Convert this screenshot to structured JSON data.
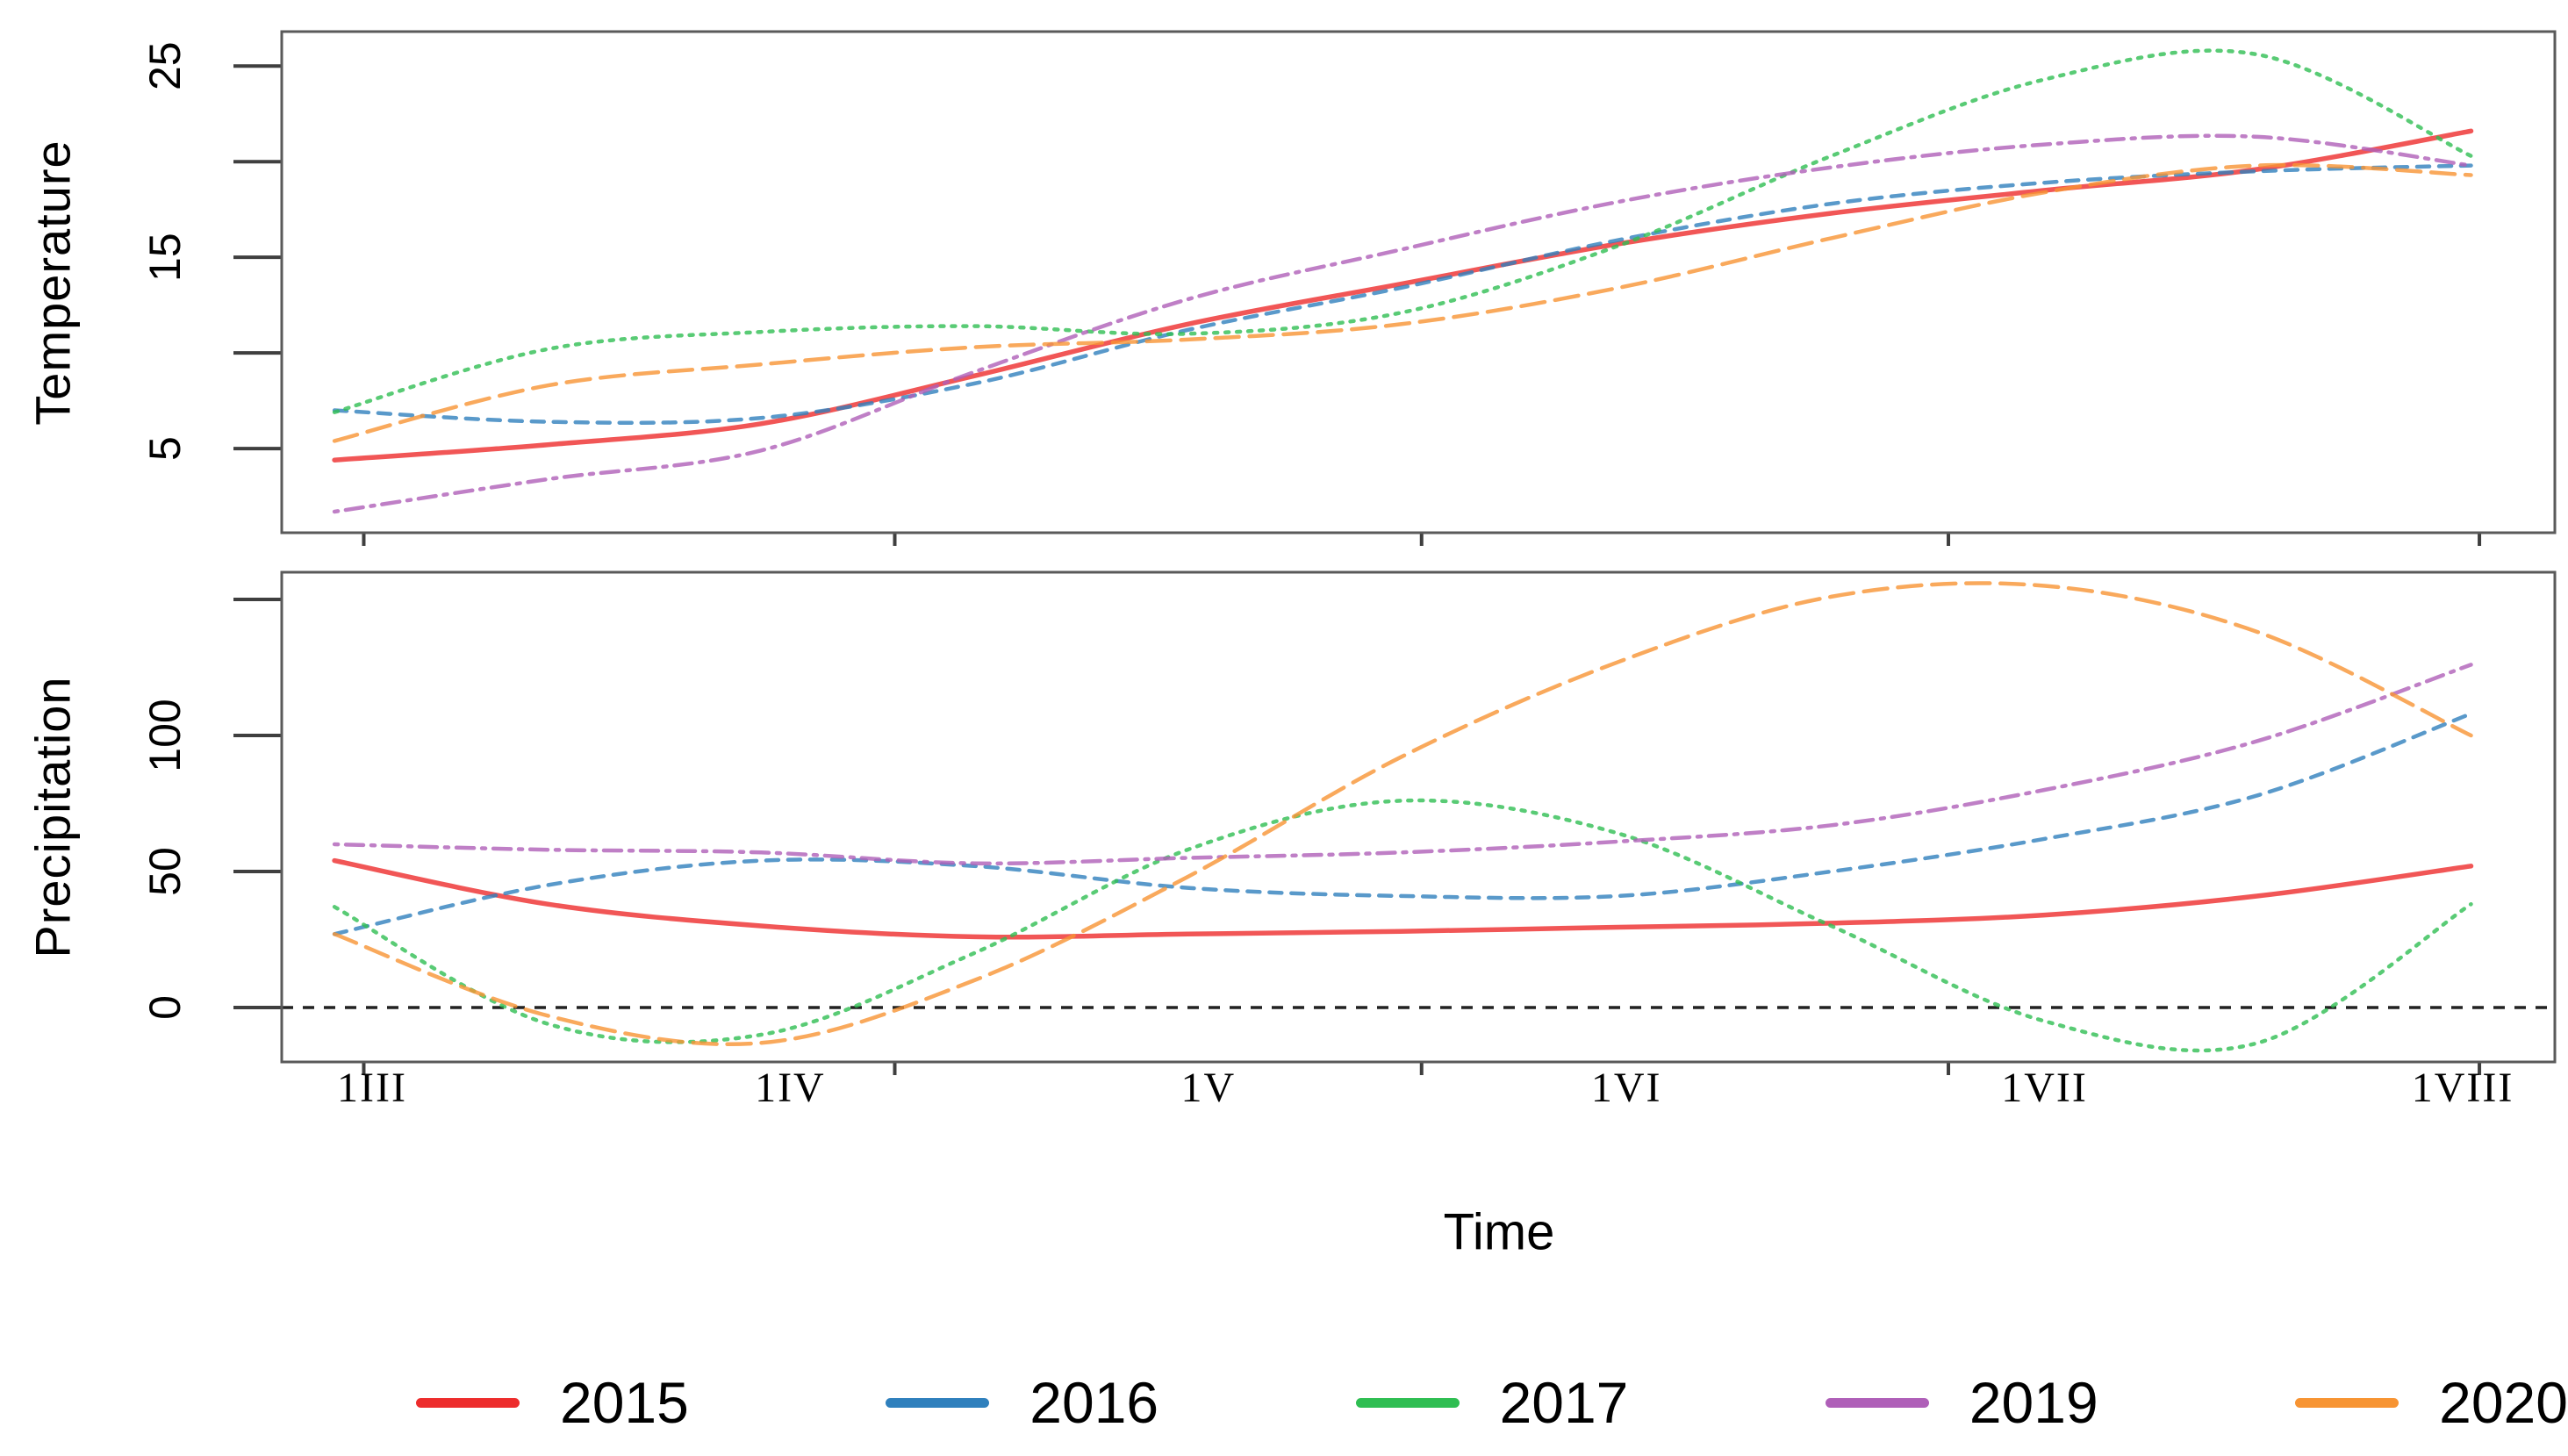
{
  "figure": {
    "background": "#ffffff",
    "text_color": "#000000",
    "frame_color": "#5a5a5a"
  },
  "chart_data": {
    "type": "line",
    "title": "",
    "x_axis": {
      "label": "Time",
      "tick_labels": [
        "1III",
        "1IV",
        "1V",
        "1VI",
        "1VII",
        "1VIII"
      ],
      "tick_label_positions": [
        0,
        1,
        2,
        3,
        4,
        5
      ],
      "minor_tick_positions": [
        -0.02,
        1.25,
        2.51,
        3.77,
        5.04
      ],
      "xlim": [
        -0.22,
        5.22
      ]
    },
    "sample_x": [
      -0.09,
      0.42,
      0.93,
      1.44,
      1.95,
      2.46,
      2.98,
      3.49,
      4.0,
      4.51,
      5.02
    ],
    "panels": [
      {
        "name": "temperature",
        "ylabel": "Temperature",
        "ylim": [
          0.6,
          26.8
        ],
        "yticks": [
          {
            "value": 5,
            "label": "5"
          },
          {
            "value": 10,
            "label": ""
          },
          {
            "value": 15,
            "label": "15"
          },
          {
            "value": 20,
            "label": ""
          },
          {
            "value": 25,
            "label": "25"
          }
        ],
        "zero_line": false,
        "grid": false,
        "series": [
          {
            "name": "2015",
            "values": [
              4.4,
              5.2,
              6.3,
              8.8,
              11.5,
              13.6,
              15.7,
              17.3,
              18.5,
              19.6,
              21.6
            ]
          },
          {
            "name": "2016",
            "values": [
              7.0,
              6.4,
              6.6,
              8.4,
              11.2,
              13.4,
              15.9,
              17.8,
              18.9,
              19.5,
              19.8
            ]
          },
          {
            "name": "2017",
            "values": [
              6.9,
              10.2,
              11.1,
              11.4,
              11.0,
              12.1,
              15.6,
              20.3,
              24.3,
              25.6,
              20.3
            ]
          },
          {
            "name": "2019",
            "values": [
              1.7,
              3.4,
              4.9,
              9.0,
              12.8,
              15.4,
              17.9,
              19.7,
              20.9,
              21.3,
              19.8
            ]
          },
          {
            "name": "2020",
            "values": [
              5.4,
              8.3,
              9.4,
              10.3,
              10.7,
              11.5,
              13.4,
              16.0,
              18.4,
              19.8,
              19.3
            ]
          }
        ]
      },
      {
        "name": "precipitation",
        "ylabel": "Precipitation",
        "ylim": [
          -20,
          160
        ],
        "yticks": [
          {
            "value": 0,
            "label": "0"
          },
          {
            "value": 50,
            "label": "50"
          },
          {
            "value": 100,
            "label": "100"
          },
          {
            "value": 150,
            "label": ""
          }
        ],
        "zero_line": true,
        "grid": false,
        "series": [
          {
            "name": "2015",
            "values": [
              54,
              38,
              30,
              26,
              27,
              28,
              29.5,
              31,
              34,
              41,
              52
            ]
          },
          {
            "name": "2016",
            "values": [
              27,
              45,
              54,
              52,
              44,
              41,
              41,
              50,
              62,
              78,
              108
            ]
          },
          {
            "name": "2017",
            "values": [
              37,
              -6,
              -10,
              20,
              58,
              76,
              64,
              30,
              -5,
              -13,
              38
            ]
          },
          {
            "name": "2019",
            "values": [
              60,
              58,
              57,
              53,
              55,
              57,
              61,
              67,
              80,
              98,
              126
            ]
          },
          {
            "name": "2020",
            "values": [
              27,
              -3,
              -13,
              10,
              48,
              92,
              127,
              151,
              155,
              138,
              100
            ]
          }
        ]
      }
    ],
    "legend": {
      "position": "bottom",
      "entries": [
        {
          "label": "2015",
          "color": "#ed2c2c",
          "style": "solid"
        },
        {
          "label": "2016",
          "color": "#2f80bd",
          "style": "dashed"
        },
        {
          "label": "2017",
          "color": "#2fbe52",
          "style": "dotted"
        },
        {
          "label": "2019",
          "color": "#af5fb8",
          "style": "dashdot"
        },
        {
          "label": "2020",
          "color": "#f79433",
          "style": "longdash"
        }
      ]
    }
  }
}
